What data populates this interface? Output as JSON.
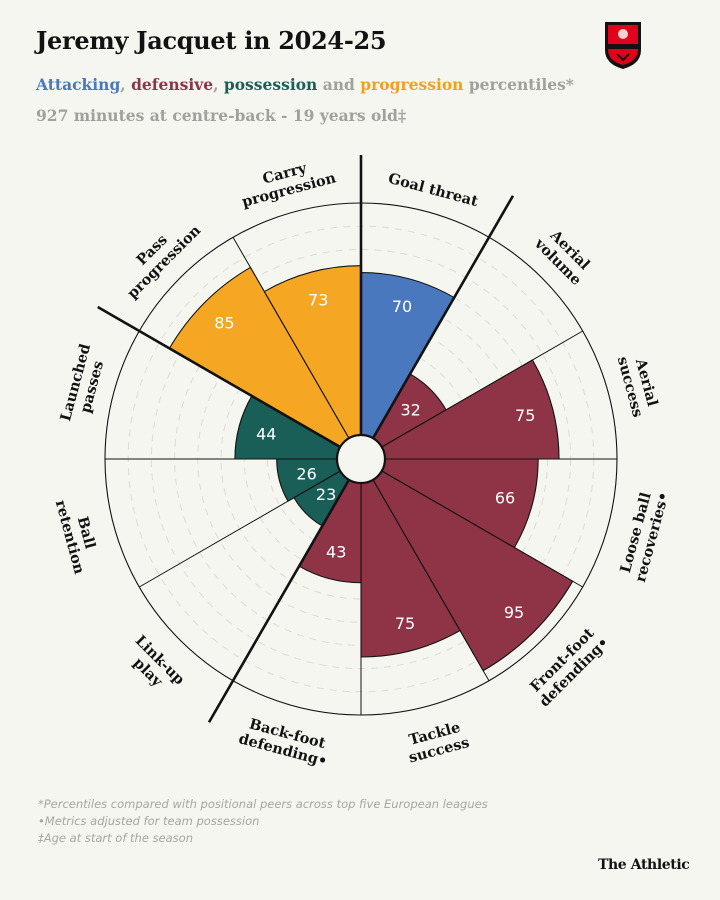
{
  "header": {
    "title": "Jeremy Jacquet in 2024-25",
    "subtitle": {
      "attacking": "Attacking",
      "sep1": ", ",
      "defensive": "defensive",
      "sep2": ", ",
      "possession": "possession",
      "sep3": " and ",
      "progression": "progression",
      "tail": " percentiles*"
    },
    "subtitle2": "927 minutes at centre-back - 19 years old‡"
  },
  "crest": {
    "name": "Stade Rennais",
    "colors": [
      "#e2001a",
      "#121212"
    ]
  },
  "chart_data": {
    "type": "radar",
    "rlim": [
      0,
      100
    ],
    "grid": true,
    "categories_colors": {
      "attacking": "#4a78be",
      "defensive": "#8f3447",
      "possession": "#1a5e58",
      "progression": "#f5a623"
    },
    "metrics": [
      {
        "label": [
          "Goal threat"
        ],
        "value": 70,
        "category": "attacking"
      },
      {
        "label": [
          "Aerial",
          "volume"
        ],
        "value": 32,
        "category": "defensive"
      },
      {
        "label": [
          "Aerial",
          "success"
        ],
        "value": 75,
        "category": "defensive"
      },
      {
        "label": [
          "Loose ball",
          "recoveries•"
        ],
        "value": 66,
        "category": "defensive"
      },
      {
        "label": [
          "Front-foot",
          "defending•"
        ],
        "value": 95,
        "category": "defensive"
      },
      {
        "label": [
          "Tackle",
          "success"
        ],
        "value": 75,
        "category": "defensive"
      },
      {
        "label": [
          "Back-foot",
          "defending•"
        ],
        "value": 43,
        "category": "defensive"
      },
      {
        "label": [
          "Link-up",
          "play"
        ],
        "value": 23,
        "category": "possession"
      },
      {
        "label": [
          "Ball",
          "retention"
        ],
        "value": 26,
        "category": "possession"
      },
      {
        "label": [
          "Launched",
          "passes"
        ],
        "value": 44,
        "category": "possession"
      },
      {
        "label": [
          "Pass",
          "progression"
        ],
        "value": 85,
        "category": "progression"
      },
      {
        "label": [
          "Carry",
          "progression"
        ],
        "value": 73,
        "category": "progression"
      }
    ]
  },
  "footnotes": [
    "*Percentiles compared with positional peers across top five European leagues",
    "•Metrics adjusted for team possession",
    "‡Age at start of the season"
  ],
  "brand": "The Athletic"
}
